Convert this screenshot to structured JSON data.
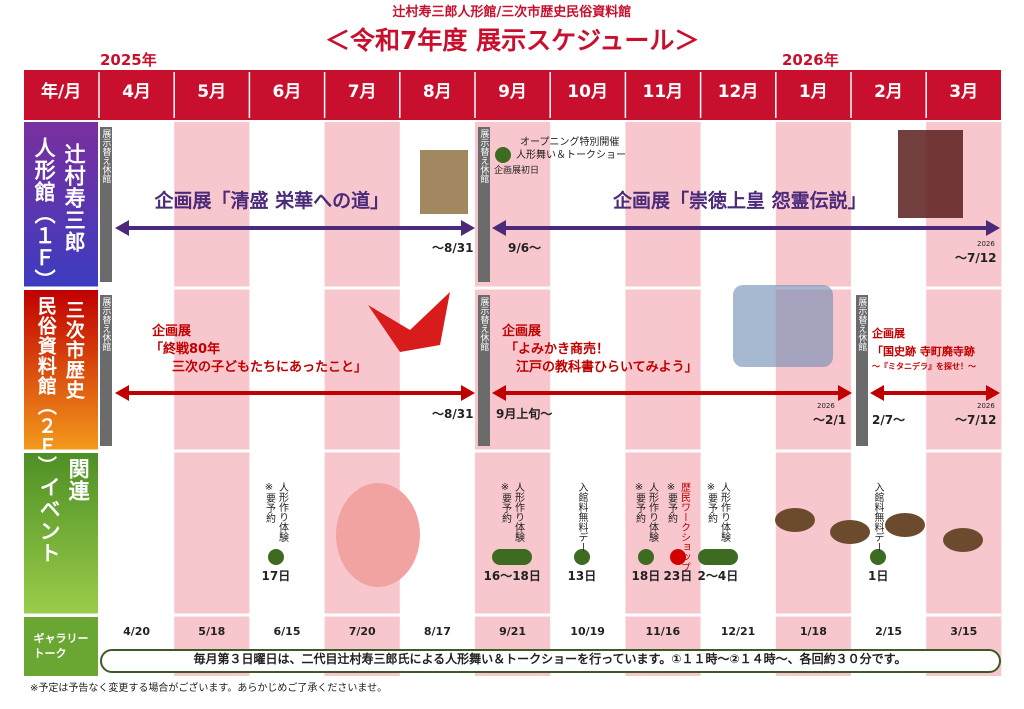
{
  "header": {
    "org": "辻村寿三郎人形館/三次市歴史民俗資料館",
    "title": "＜令和7年度 展示スケジュール＞",
    "year_left": "2025年",
    "year_right": "2026年",
    "corner": "年/月"
  },
  "months": [
    "4月",
    "5月",
    "6月",
    "7月",
    "8月",
    "9月",
    "10月",
    "11月",
    "12月",
    "1月",
    "2月",
    "3月"
  ],
  "rows": [
    {
      "label": [
        "辻村寿三郎",
        "人形館（１Ｆ）"
      ],
      "closure": "展示替え休館",
      "opening": [
        "オープニング特別開催",
        "人形舞い＆トークショー",
        "企画展初日"
      ],
      "exhibits": [
        {
          "lines": [
            "企画展「清盛 栄華への道」"
          ],
          "end": "～8/31"
        },
        {
          "lines": [
            "企画展「崇徳上皇 怨霊伝説」"
          ],
          "start": "9/6～",
          "end_year": "2026",
          "end": "～7/12"
        }
      ]
    },
    {
      "label": [
        "三次市歴史",
        "民俗資料館（２Ｆ）"
      ],
      "closure": "展示替え休館",
      "exhibits": [
        {
          "lines": [
            "企画展",
            "「終戦80年",
            "三次の子どもたちにあったこと」"
          ],
          "end": "～8/31"
        },
        {
          "lines": [
            "企画展",
            "「よみかき商売！",
            "江戸の教科書ひらいてみよう」"
          ],
          "start": "9月上旬～",
          "end_year": "2026",
          "end": "～2/1"
        },
        {
          "lines": [
            "企画展",
            "「国史跡 寺町廃寺跡",
            "～『ミタニデラ』を探せ！～"
          ],
          "start": "2/7～",
          "end_year": "2026",
          "end": "～7/12"
        }
      ]
    },
    {
      "label": [
        "関連",
        "イベント"
      ],
      "events": [
        {
          "lines": [
            "人形作り体験",
            "※要予約"
          ],
          "date": "17日",
          "color": "#3d6b22"
        },
        {
          "lines": [
            "人形作り体験",
            "※要予約"
          ],
          "date": "16～18日",
          "color": "#3d6b22"
        },
        {
          "lines": [
            "入館料無料デー"
          ],
          "date": "13日",
          "color": "#3d6b22"
        },
        {
          "lines": [
            "人形作り体験",
            "※要予約"
          ],
          "date": "18日",
          "color": "#3d6b22"
        },
        {
          "lines": [
            "歴民ワークショップ",
            "※要予約"
          ],
          "date": "23日",
          "color": "#d40000"
        },
        {
          "lines": [
            "人形作り体験",
            "※要予約"
          ],
          "date": "2～4日",
          "color": "#3d6b22"
        },
        {
          "lines": [
            "入館料無料デー"
          ],
          "date": "1日",
          "color": "#3d6b22"
        }
      ]
    },
    {
      "label": [
        "ギャラリー",
        "トーク"
      ],
      "dates": [
        "4/20",
        "5/18",
        "6/15",
        "7/20",
        "8/17",
        "9/21",
        "10/19",
        "11/16",
        "12/21",
        "1/18",
        "2/15",
        "3/15"
      ],
      "banner": "毎月第３日曜日は、二代目辻村寿三郎氏による人形舞い＆トークショーを行っています。①１１時～②１４時～、各回約３０分です。"
    }
  ],
  "footnote": "※予定は予告なく変更する場合がございます。あらかじめご了承くださいませ。"
}
